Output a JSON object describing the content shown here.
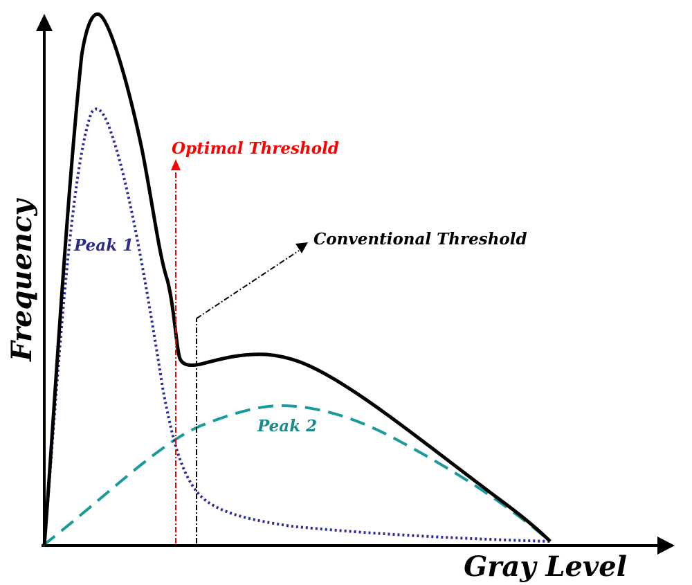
{
  "diagram": {
    "x_axis_label": "Gray Level",
    "y_axis_label": "Frequency",
    "annotations": {
      "optimal_threshold": "Optimal Threshold",
      "conventional_threshold": "Conventional Threshold",
      "peak1": "Peak 1",
      "peak2": "Peak 2"
    },
    "colors": {
      "axis": "#000000",
      "total_curve": "#000000",
      "peak1_curve": "#2b2b9a",
      "peak2_curve": "#1a9a9a",
      "optimal_threshold": "#ff0000",
      "conventional_threshold": "#000000",
      "peak1_label": "#2b2b8a",
      "peak2_label": "#1a8a8a"
    },
    "curves": [
      {
        "name": "total",
        "style": "solid"
      },
      {
        "name": "peak1",
        "style": "dotted"
      },
      {
        "name": "peak2",
        "style": "dashed"
      }
    ]
  }
}
